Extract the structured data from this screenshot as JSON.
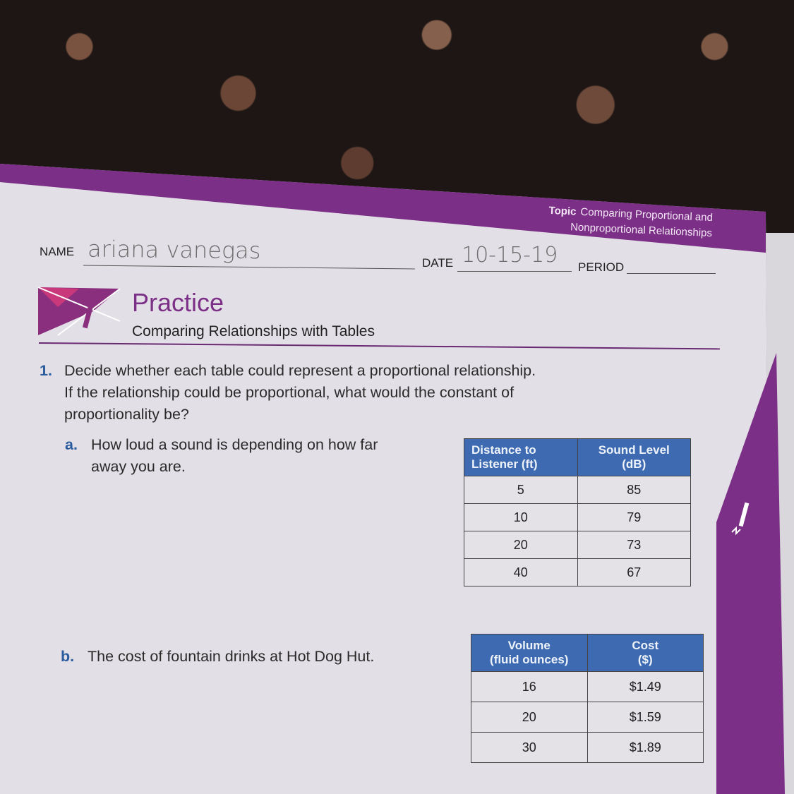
{
  "header": {
    "topic_label": "Topic",
    "topic_line1": "Comparing Proportional and",
    "topic_line2": "Nonproportional Relationships"
  },
  "form": {
    "name_label": "NAME",
    "name_value": "ariana vanegas",
    "date_label": "DATE",
    "date_value": "10-15-19",
    "period_label": "PERIOD",
    "period_value": ""
  },
  "title": {
    "section": "Practice",
    "subtitle": "Comparing Relationships with Tables"
  },
  "question1": {
    "number": "1.",
    "text_line1": "Decide whether each table could represent a proportional relationship.",
    "text_line2": "If the relationship could be proportional, what would the constant of",
    "text_line3": "proportionality be?"
  },
  "part_a": {
    "letter": "a.",
    "line1": "How loud a sound is depending on how far",
    "line2": "away you are.",
    "table": {
      "headers": [
        [
          "Distance to",
          "Listener (ft)"
        ],
        [
          "Sound Level",
          "(dB)"
        ]
      ],
      "rows": [
        [
          "5",
          "85"
        ],
        [
          "10",
          "79"
        ],
        [
          "20",
          "73"
        ],
        [
          "40",
          "67"
        ]
      ]
    }
  },
  "part_b": {
    "letter": "b.",
    "text": "The cost of fountain drinks at Hot Dog Hut.",
    "table": {
      "headers": [
        [
          "Volume",
          "(fluid ounces)"
        ],
        [
          "Cost",
          "($)"
        ]
      ],
      "rows": [
        [
          "16",
          "$1.49"
        ],
        [
          "20",
          "$1.59"
        ],
        [
          "30",
          "$1.89"
        ]
      ]
    }
  },
  "colors": {
    "brand_purple": "#7b2f86",
    "table_header_blue": "#3d6ab0",
    "question_number_blue": "#2b5c9e"
  }
}
